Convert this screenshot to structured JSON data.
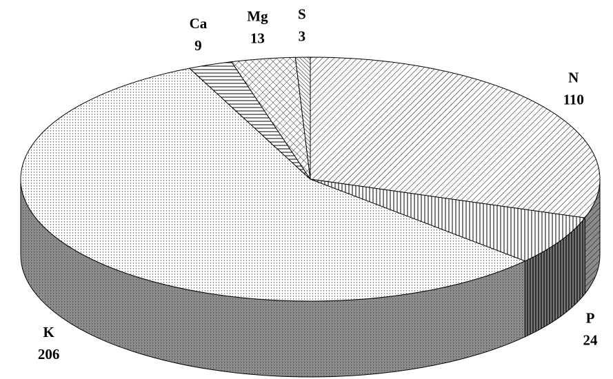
{
  "chart_data": {
    "type": "pie",
    "categories": [
      "N",
      "P",
      "K",
      "Ca",
      "Mg",
      "S"
    ],
    "values": [
      110,
      24,
      206,
      9,
      13,
      3
    ]
  }
}
